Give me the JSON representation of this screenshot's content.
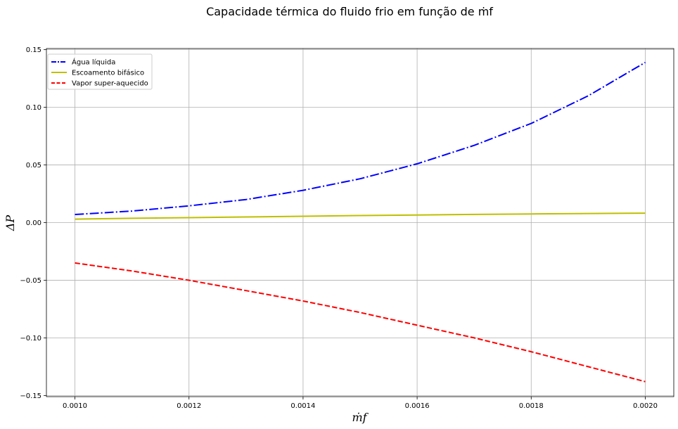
{
  "chart_data": {
    "type": "line",
    "title": "Capacidade térmica do fluido frio em função de ṁf",
    "xlabel": "ṁf",
    "ylabel": "ΔP",
    "xlim": [
      0.00095,
      0.00205
    ],
    "ylim": [
      -0.151,
      0.151
    ],
    "xticks": [
      0.001,
      0.0012,
      0.0014,
      0.0016,
      0.0018,
      0.002
    ],
    "xtick_labels": [
      "0.0010",
      "0.0012",
      "0.0014",
      "0.0016",
      "0.0018",
      "0.0020"
    ],
    "yticks": [
      -0.15,
      -0.1,
      -0.05,
      0.0,
      0.05,
      0.1,
      0.15
    ],
    "ytick_labels": [
      "−0.15",
      "−0.10",
      "−0.05",
      "0.00",
      "0.05",
      "0.10",
      "0.15"
    ],
    "grid": true,
    "legend_position": "top-left",
    "x": [
      0.001,
      0.0011,
      0.0012,
      0.0013,
      0.0014,
      0.0015,
      0.0016,
      0.0017,
      0.0018,
      0.0019,
      0.002
    ],
    "series": [
      {
        "name": "Água líquida",
        "color": "#0000ff",
        "style": "dashdot",
        "values": [
          0.007,
          0.01,
          0.0145,
          0.02,
          0.028,
          0.038,
          0.051,
          0.067,
          0.086,
          0.11,
          0.139
        ]
      },
      {
        "name": "Escoamento bifásico",
        "color": "#bfbf00",
        "style": "solid",
        "values": [
          0.003,
          0.0037,
          0.0043,
          0.0049,
          0.0055,
          0.0061,
          0.0066,
          0.0071,
          0.0075,
          0.0079,
          0.0082
        ]
      },
      {
        "name": "Vapor super-aquecido",
        "color": "#ff0000",
        "style": "dashed",
        "values": [
          -0.035,
          -0.042,
          -0.05,
          -0.059,
          -0.068,
          -0.078,
          -0.089,
          -0.1,
          -0.112,
          -0.125,
          -0.138
        ]
      }
    ]
  }
}
